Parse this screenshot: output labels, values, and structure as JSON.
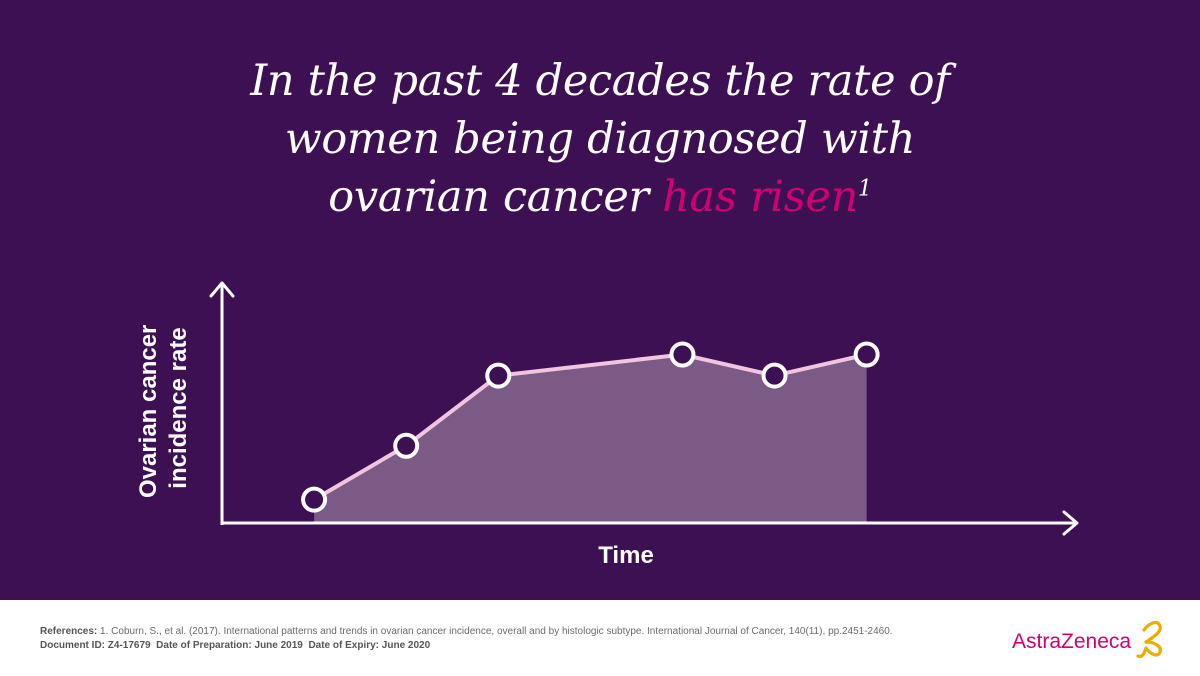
{
  "headline": {
    "line1": "In the past 4 decades the rate of",
    "line2": "women being diagnosed with",
    "line3_start": "ovarian cancer ",
    "line3_highlight": "has risen",
    "superscript": "1"
  },
  "chart_data": {
    "type": "area",
    "title": "In the past 4 decades the rate of women being diagnosed with ovarian cancer has risen",
    "xlabel": "Time",
    "ylabel_lines": [
      "Ovarian cancer",
      "incidence rate"
    ],
    "x": [
      1,
      2,
      3,
      5,
      6,
      7
    ],
    "y": [
      10,
      33,
      63,
      72,
      63,
      72
    ],
    "xlim": [
      0,
      9.1
    ],
    "ylim": [
      0,
      100
    ],
    "grid": false,
    "colors": {
      "line": "#f2c4e0",
      "fill": "#7b5a85",
      "marker_fill": "#3c1053",
      "marker_stroke": "#ffffff",
      "axis": "#ffffff",
      "highlight": "#d0006f"
    }
  },
  "footer": {
    "references_label": "References:",
    "references_text": " 1. Coburn, S., et al. (2017). International patterns and trends in ovarian cancer incidence, overall and by histologic subtype. International Journal of Cancer, 140(11), pp.2451-2460.",
    "document_id_label": "Document ID: Z4-17679",
    "preparation_label": "Date of Preparation: June 2019",
    "expiry_label": "Date of Expiry: June 2020",
    "brand": "AstraZeneca",
    "brand_accent": "#f0ab00"
  }
}
